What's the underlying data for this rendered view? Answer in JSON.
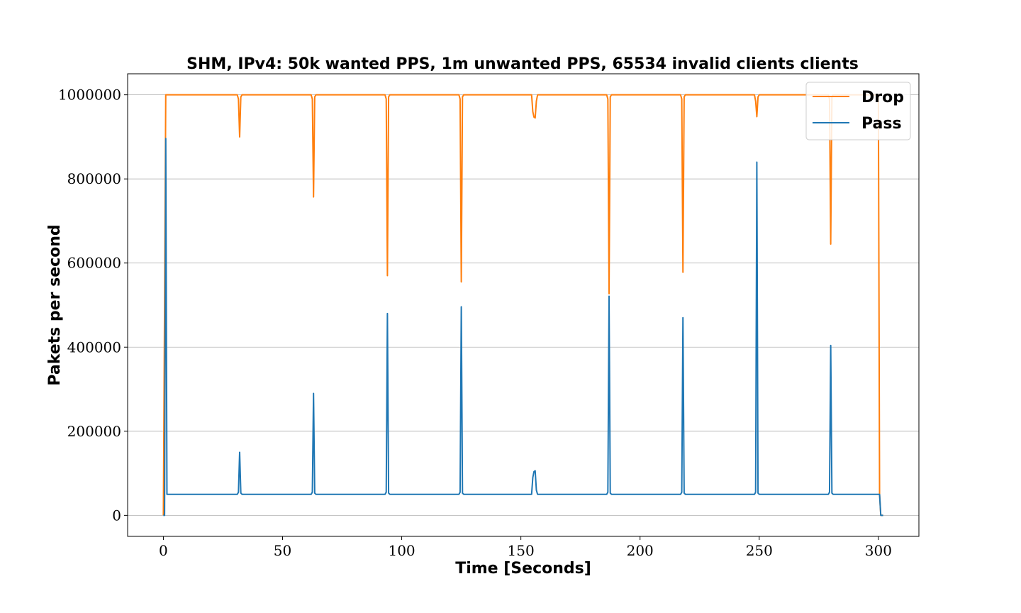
{
  "chart_data": {
    "type": "line",
    "title": "SHM, IPv4: 50k wanted PPS, 1m unwanted PPS, 65534 invalid clients clients",
    "xlabel": "Time [Seconds]",
    "ylabel": "Pakets per second",
    "xlim": [
      -15,
      317
    ],
    "ylim": [
      -50000,
      1050000
    ],
    "xticks": [
      0,
      50,
      100,
      150,
      200,
      250,
      300
    ],
    "xtick_labels": [
      "0",
      "50",
      "100",
      "150",
      "200",
      "250",
      "300"
    ],
    "yticks": [
      0,
      200000,
      400000,
      600000,
      800000,
      1000000
    ],
    "ytick_labels": [
      "0",
      "200000",
      "400000",
      "600000",
      "800000",
      "1000000"
    ],
    "grid": "horizontal",
    "legend": "top-right",
    "series": [
      {
        "name": "Drop",
        "color": "#ff7f0e",
        "x": [
          0,
          1,
          1.5,
          2,
          31,
          31.5,
          32,
          32.5,
          33,
          62,
          62.5,
          63,
          63.5,
          64,
          93,
          93.5,
          94,
          94.5,
          95,
          124,
          124.5,
          125,
          125.5,
          126,
          154.5,
          155,
          155.5,
          156,
          156.5,
          157,
          186,
          186.5,
          187,
          187.5,
          188,
          217,
          217.5,
          218,
          218.5,
          219,
          248,
          248.5,
          249,
          249.5,
          250,
          279,
          279.5,
          280,
          280.5,
          281,
          300,
          300.5,
          301,
          301.5,
          302
        ],
        "y": [
          0,
          1000000,
          1000000,
          1000000,
          1000000,
          990000,
          900000,
          995000,
          1000000,
          1000000,
          990000,
          757000,
          995000,
          1000000,
          1000000,
          990000,
          570000,
          995000,
          1000000,
          1000000,
          990000,
          555000,
          995000,
          1000000,
          1000000,
          960000,
          947000,
          945000,
          985000,
          1000000,
          1000000,
          990000,
          527000,
          995000,
          1000000,
          1000000,
          990000,
          578000,
          995000,
          1000000,
          1000000,
          985000,
          948000,
          995000,
          1000000,
          1000000,
          990000,
          645000,
          995000,
          1000000,
          1000000,
          50000,
          0,
          0,
          0
        ]
      },
      {
        "name": "Pass",
        "color": "#1f77b4",
        "x": [
          0,
          0.5,
          1,
          1.5,
          2,
          31,
          31.5,
          32,
          32.5,
          33,
          62,
          62.5,
          63,
          63.5,
          64,
          93,
          93.5,
          94,
          94.5,
          95,
          124,
          124.5,
          125,
          125.5,
          126,
          154.5,
          155,
          155.5,
          156,
          156.5,
          157,
          186,
          186.5,
          187,
          187.5,
          188,
          217,
          217.5,
          218,
          218.5,
          219,
          248,
          248.5,
          249,
          249.5,
          250,
          279,
          279.5,
          280,
          280.5,
          281,
          300,
          300.5,
          301,
          301.5,
          302
        ],
        "y": [
          0,
          0,
          896000,
          50000,
          50000,
          50000,
          55000,
          150000,
          53000,
          50000,
          50000,
          55000,
          290000,
          53000,
          50000,
          50000,
          55000,
          480000,
          53000,
          50000,
          50000,
          55000,
          496000,
          53000,
          50000,
          50000,
          90000,
          104000,
          106000,
          60000,
          50000,
          50000,
          55000,
          521000,
          53000,
          50000,
          50000,
          55000,
          470000,
          53000,
          50000,
          50000,
          55000,
          840000,
          53000,
          50000,
          50000,
          55000,
          404000,
          53000,
          50000,
          50000,
          50000,
          0,
          0,
          0
        ]
      }
    ]
  }
}
